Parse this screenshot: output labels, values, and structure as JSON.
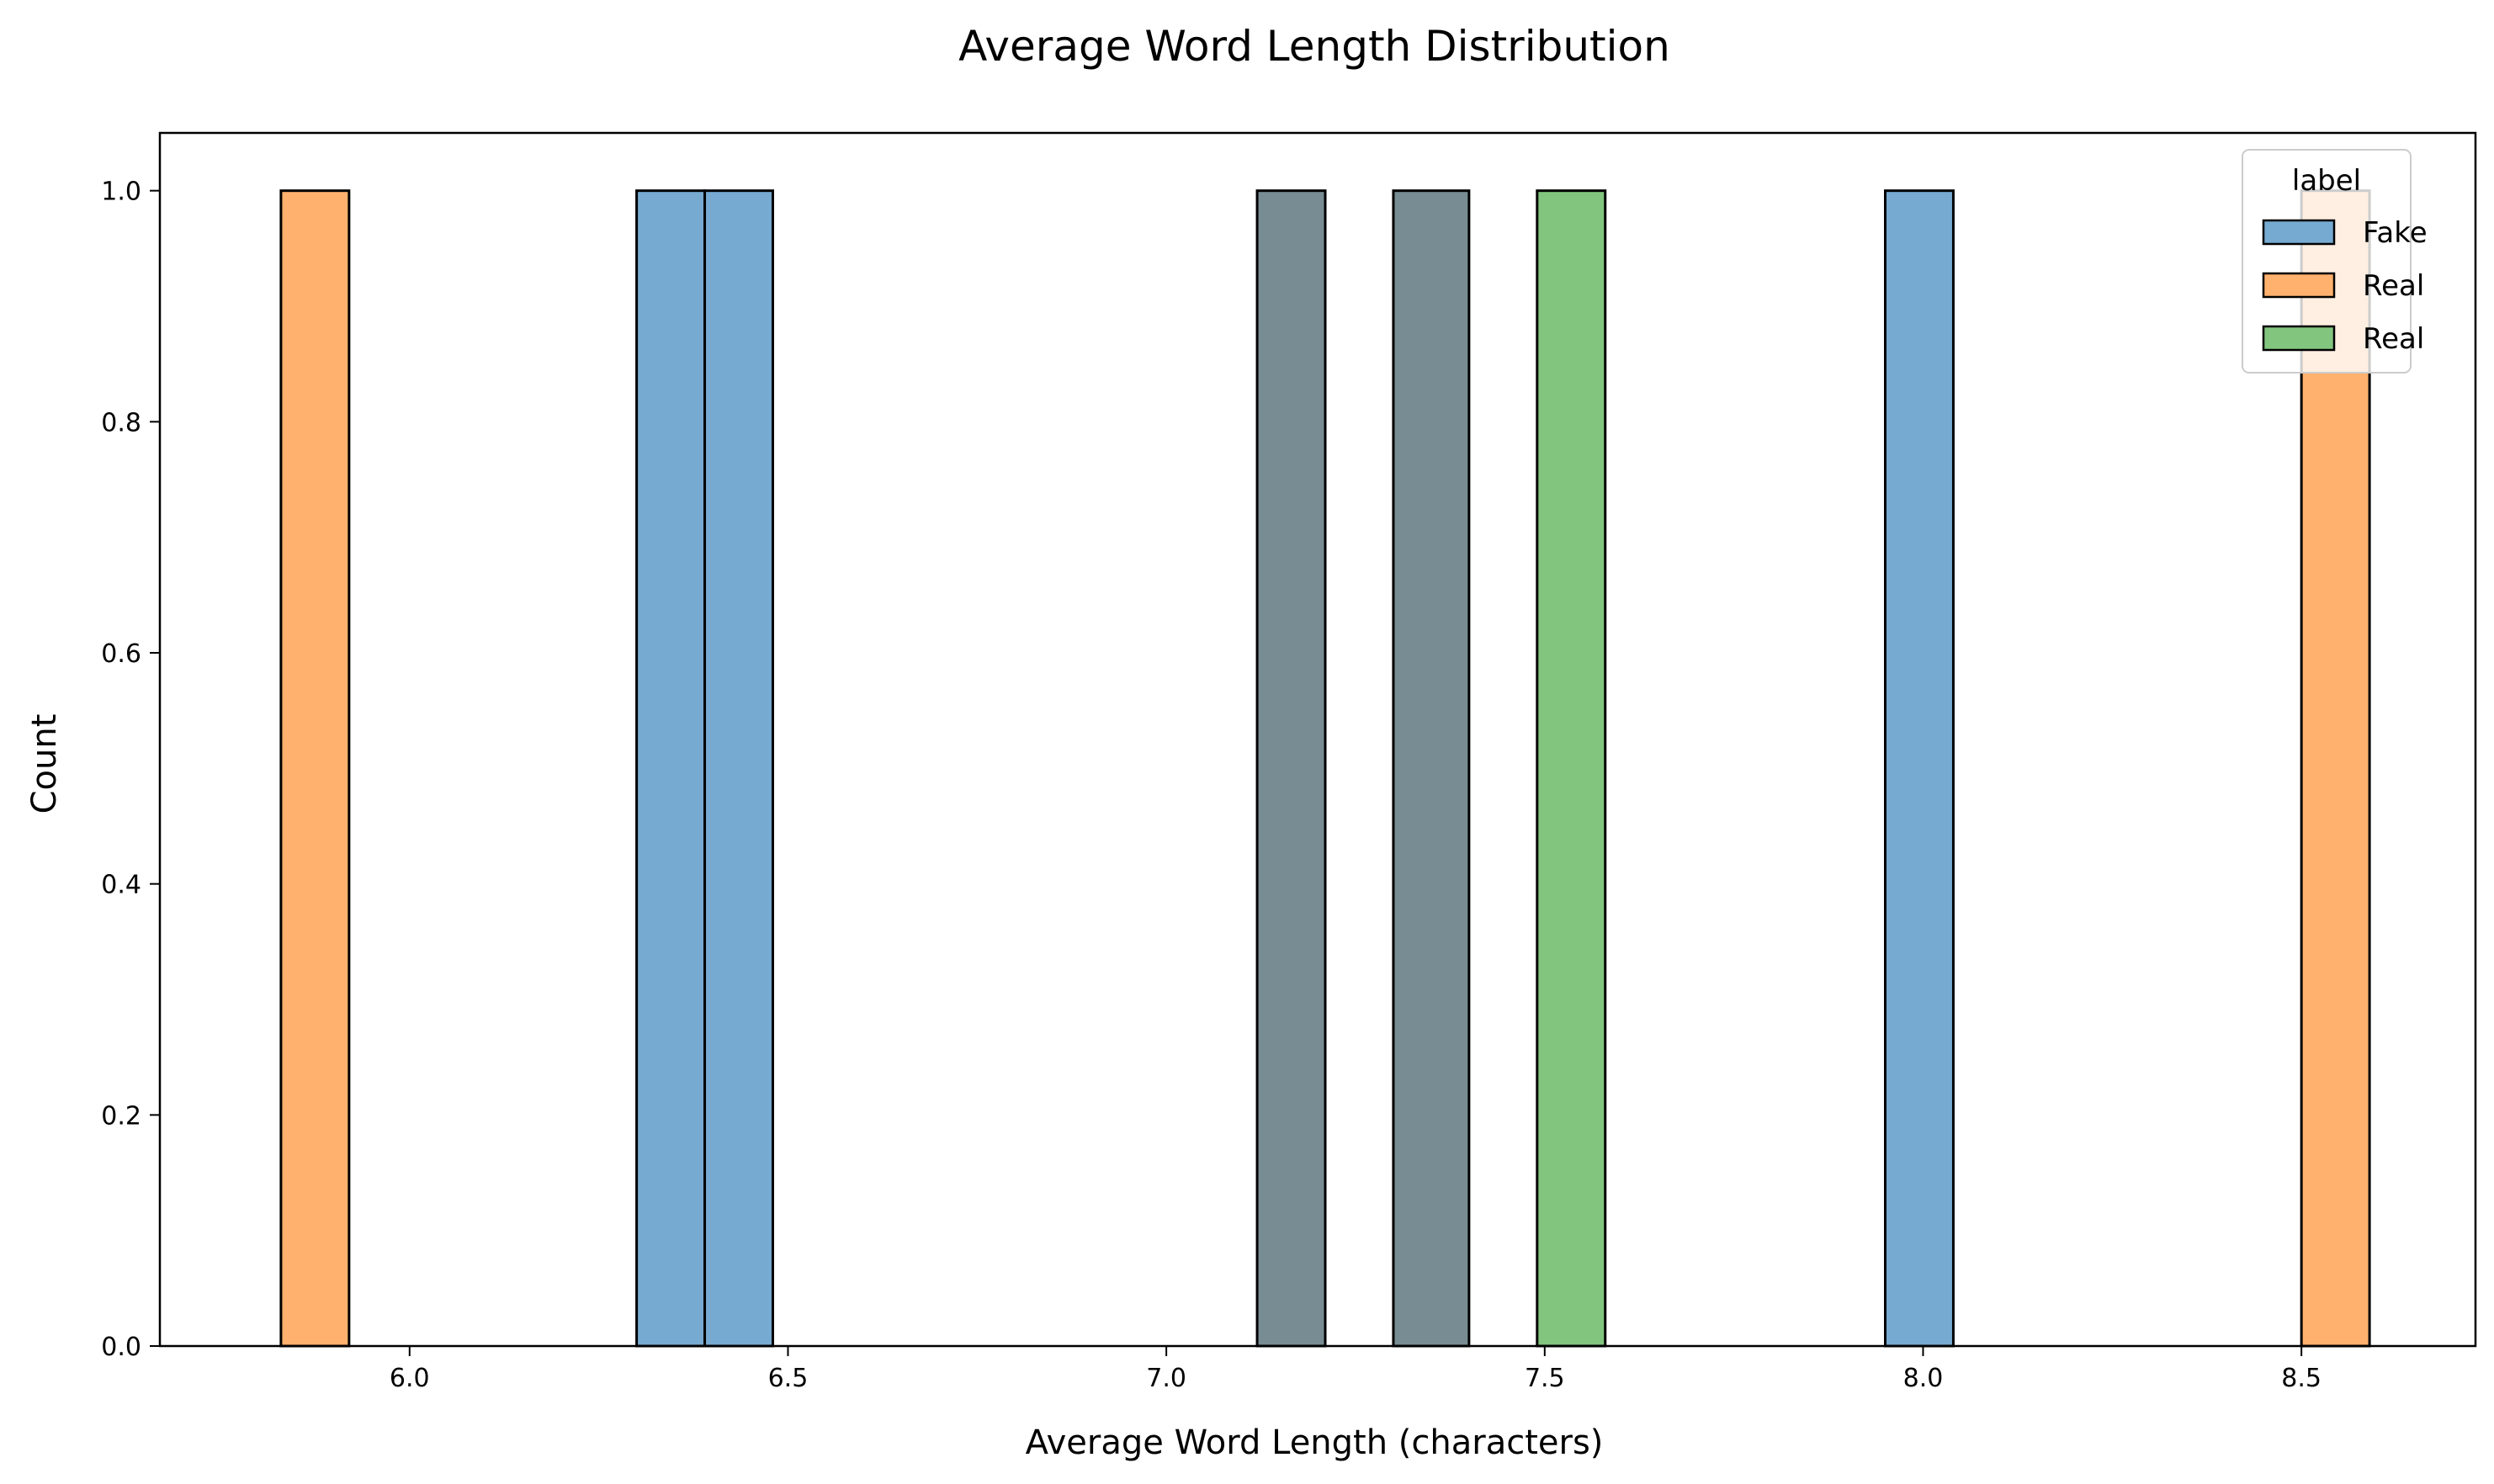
{
  "chart_data": {
    "type": "bar",
    "title": "Average Word Length Distribution",
    "xlabel": "Average Word Length (characters)",
    "ylabel": "Count",
    "xlim": [
      5.67,
      8.73
    ],
    "ylim": [
      0,
      1.05
    ],
    "xticks": [
      "6.0",
      "6.5",
      "7.0",
      "7.5",
      "8.0",
      "8.5"
    ],
    "xtick_values": [
      6.0,
      6.5,
      7.0,
      7.5,
      8.0,
      8.5
    ],
    "yticks": [
      "0.0",
      "0.2",
      "0.4",
      "0.6",
      "0.8",
      "1.0"
    ],
    "ytick_values": [
      0.0,
      0.2,
      0.4,
      0.6,
      0.8,
      1.0
    ],
    "legend": {
      "title": "label",
      "placement": "top-right",
      "entries": [
        {
          "label": "Fake",
          "color": "#77aad1"
        },
        {
          "label": "Real",
          "color": "#ffb16d"
        },
        {
          "label": "Real",
          "color": "#82c57f"
        }
      ]
    },
    "bars": [
      {
        "x0": 5.83,
        "x1": 5.92,
        "count": 1,
        "color": "#ffb16d"
      },
      {
        "x0": 6.3,
        "x1": 6.39,
        "count": 1,
        "color": "#77aad1"
      },
      {
        "x0": 6.39,
        "x1": 6.48,
        "count": 1,
        "color": "#77aad1"
      },
      {
        "x0": 7.12,
        "x1": 7.21,
        "count": 1,
        "color": "#788c93"
      },
      {
        "x0": 7.3,
        "x1": 7.4,
        "count": 1,
        "color": "#788c93"
      },
      {
        "x0": 7.49,
        "x1": 7.58,
        "count": 1,
        "color": "#82c57f"
      },
      {
        "x0": 7.95,
        "x1": 8.04,
        "count": 1,
        "color": "#77aad1"
      },
      {
        "x0": 8.5,
        "x1": 8.59,
        "count": 1,
        "color": "#ffb16d"
      }
    ]
  }
}
